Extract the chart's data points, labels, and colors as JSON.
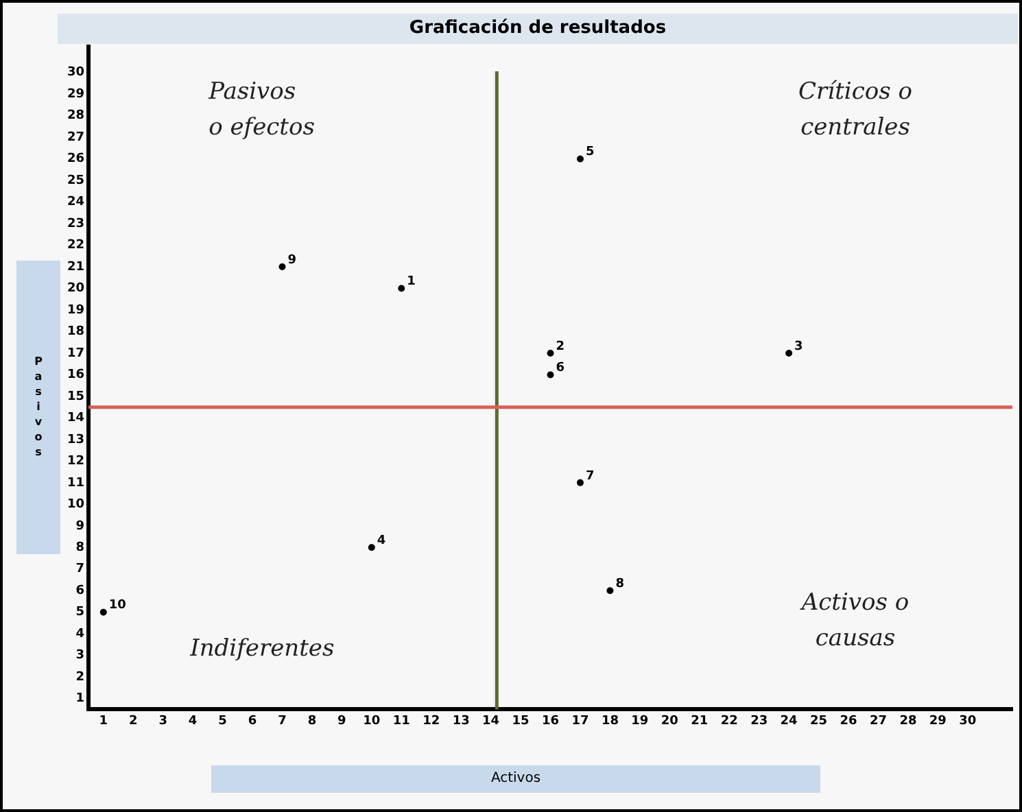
{
  "chart_data": {
    "type": "scatter",
    "title": "Graficación de resultados",
    "xlabel": "Activos",
    "ylabel": "Pasivos",
    "series": [
      {
        "color": "#000000",
        "x": [
          11,
          16,
          24,
          10,
          17,
          16,
          17,
          18,
          7,
          1
        ],
        "values": [
          20,
          17,
          17,
          8,
          26,
          16,
          11,
          6,
          21,
          5
        ]
      }
    ],
    "marker": "circle",
    "grid": false,
    "legend": false,
    "xlim": [
      0.5,
      31.5
    ],
    "xticks": [
      1,
      2,
      3,
      4,
      5,
      6,
      7,
      8,
      9,
      10,
      11,
      12,
      13,
      14,
      15,
      16,
      17,
      18,
      19,
      20,
      21,
      22,
      23,
      24,
      25,
      26,
      27,
      28,
      29,
      30
    ],
    "ylim": [
      0.5,
      31.2
    ],
    "yticks": [
      1,
      2,
      3,
      4,
      5,
      6,
      7,
      8,
      9,
      10,
      11,
      12,
      13,
      14,
      15,
      16,
      17,
      18,
      19,
      20,
      21,
      22,
      23,
      24,
      25,
      26,
      27,
      28,
      29,
      30
    ],
    "ref_lines": [
      {
        "axis": "x",
        "value": 14.2,
        "color": "#5b6b2e"
      },
      {
        "axis": "y",
        "value": 14.5,
        "color": "#d9605a"
      }
    ],
    "annotations": [
      "Pasivos o efectos",
      "Críticos o centrales",
      "Indiferentes",
      "Activos o causas",
      {
        "text": "1",
        "x": 11,
        "y": 20
      },
      {
        "text": "2",
        "x": 16,
        "y": 17
      },
      {
        "text": "3",
        "x": 24,
        "y": 17
      },
      {
        "text": "4",
        "x": 10,
        "y": 8
      },
      {
        "text": "5",
        "x": 17,
        "y": 26
      },
      {
        "text": "6",
        "x": 16,
        "y": 16
      },
      {
        "text": "7",
        "x": 17,
        "y": 11
      },
      {
        "text": "8",
        "x": 18,
        "y": 6
      },
      {
        "text": "9",
        "x": 7,
        "y": 21
      },
      {
        "text": "10",
        "x": 1,
        "y": 5
      }
    ]
  }
}
